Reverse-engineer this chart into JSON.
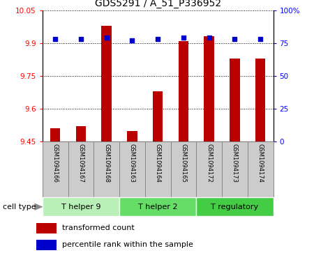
{
  "title": "GDS5291 / A_51_P336952",
  "samples": [
    "GSM1094166",
    "GSM1094167",
    "GSM1094168",
    "GSM1094163",
    "GSM1094164",
    "GSM1094165",
    "GSM1094172",
    "GSM1094173",
    "GSM1094174"
  ],
  "transformed_count": [
    9.51,
    9.52,
    9.98,
    9.5,
    9.68,
    9.91,
    9.93,
    9.83,
    9.83
  ],
  "percentile_rank": [
    78,
    78,
    79,
    77,
    78,
    79,
    79,
    78,
    78
  ],
  "ylim_left": [
    9.45,
    10.05
  ],
  "ylim_right": [
    0,
    100
  ],
  "yticks_left": [
    9.45,
    9.6,
    9.75,
    9.9,
    10.05
  ],
  "yticks_right": [
    0,
    25,
    50,
    75,
    100
  ],
  "ytick_labels_left": [
    "9.45",
    "9.6",
    "9.75",
    "9.9",
    "10.05"
  ],
  "ytick_labels_right": [
    "0",
    "25",
    "50",
    "75",
    "100%"
  ],
  "cell_groups": [
    {
      "label": "T helper 9",
      "indices": [
        0,
        1,
        2
      ],
      "color": "#b8f0b8"
    },
    {
      "label": "T helper 2",
      "indices": [
        3,
        4,
        5
      ],
      "color": "#66dd66"
    },
    {
      "label": "T regulatory",
      "indices": [
        6,
        7,
        8
      ],
      "color": "#44cc44"
    }
  ],
  "bar_color": "#bb0000",
  "dot_color": "#0000cc",
  "bar_width": 0.4,
  "dot_size": 25,
  "cell_type_label": "cell type",
  "legend_bar_label": "transformed count",
  "legend_dot_label": "percentile rank within the sample",
  "bar_bottom": 9.45,
  "label_box_color": "#cccccc",
  "label_box_edge": "#888888"
}
